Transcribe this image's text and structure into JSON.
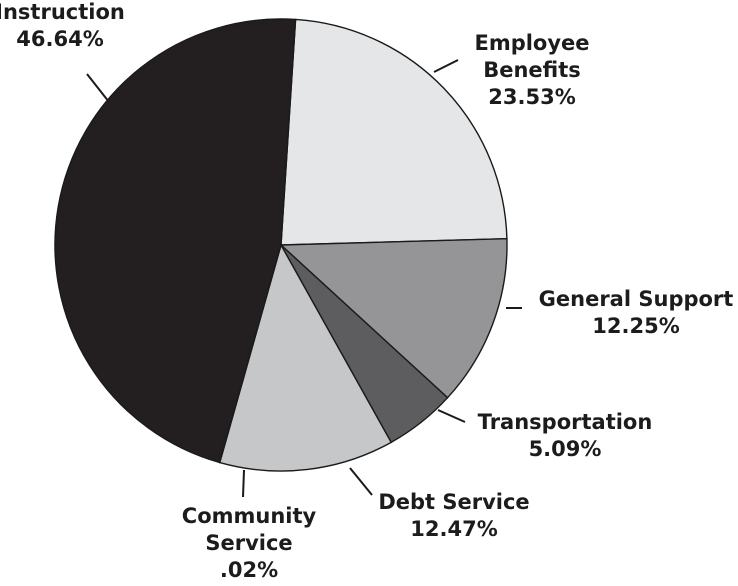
{
  "chart_data": {
    "type": "pie",
    "title": "",
    "start_angle_deg": -86.3,
    "direction": "clockwise",
    "slices": [
      {
        "name": "Employee Benefits",
        "label_lines": [
          "Employee",
          "Benefits",
          "23.53%"
        ],
        "value": 23.53,
        "color": "#e5e6e8"
      },
      {
        "name": "General Support",
        "label_lines": [
          "General Support",
          "12.25%"
        ],
        "value": 12.25,
        "color": "#959597"
      },
      {
        "name": "Transportation",
        "label_lines": [
          "Transportation",
          "5.09%"
        ],
        "value": 5.09,
        "color": "#5d5d5f"
      },
      {
        "name": "Debt Service",
        "label_lines": [
          "Debt Service",
          "12.47%"
        ],
        "value": 12.47,
        "color": "#c6c7c9"
      },
      {
        "name": "Community Service",
        "label_lines": [
          "Community",
          "Service",
          ".02%"
        ],
        "value": 0.02,
        "color": "#ffffff"
      },
      {
        "name": "Instruction",
        "label_lines": [
          "Instruction",
          "46.64%"
        ],
        "value": 46.64,
        "color": "#231f20"
      }
    ]
  }
}
